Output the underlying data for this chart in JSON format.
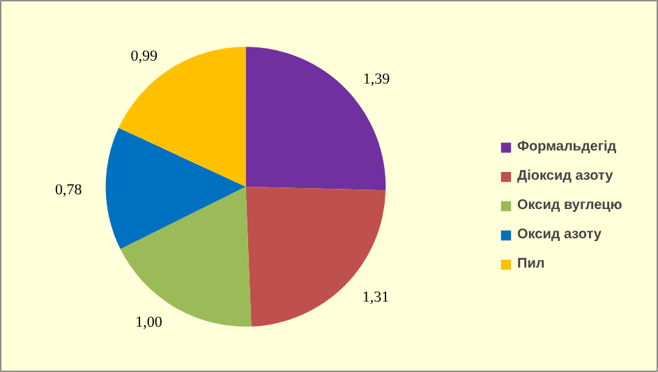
{
  "chart_data": {
    "type": "pie",
    "categories": [
      "Формальдегід",
      "Діоксид азоту",
      "Оксид вуглецю",
      "Оксид азоту",
      "Пил"
    ],
    "values": [
      1.39,
      1.31,
      1.0,
      0.78,
      0.99
    ],
    "value_labels": [
      "1,39",
      "1,31",
      "1,00",
      "0,78",
      "0,99"
    ],
    "colors": [
      "#7030a0",
      "#c0504d",
      "#9bbb59",
      "#0070c0",
      "#ffc000"
    ],
    "legend": "right"
  }
}
